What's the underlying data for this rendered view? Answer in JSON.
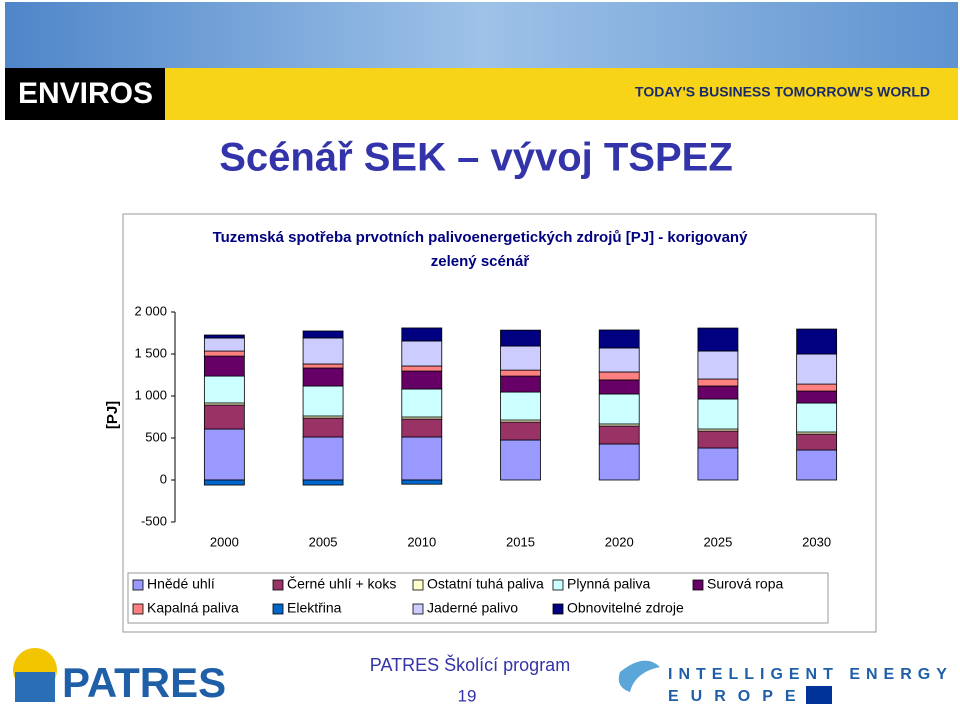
{
  "header": {
    "brand": "ENVIROS",
    "slogan": "TODAY'S BUSINESS TOMORROW'S WORLD"
  },
  "slide_title": "Scénář SEK – vývoj TSPEZ",
  "chart_data": {
    "type": "stacked_bar",
    "title": "Tuzemská spotřeba prvotních palivoenergetických zdrojů [PJ] - korigovaný",
    "subtitle": "zelený scénář",
    "y_label": "[PJ]",
    "categories": [
      "2000",
      "2005",
      "2010",
      "2015",
      "2020",
      "2025",
      "2030"
    ],
    "ylim": [
      -500,
      2000
    ],
    "yticks": [
      {
        "value": 2000,
        "label": "2 000"
      },
      {
        "value": 1500,
        "label": "1 500"
      },
      {
        "value": 1000,
        "label": "1 000"
      },
      500,
      0,
      -500
    ],
    "series": [
      {
        "name": "Hnědé uhlí",
        "color": "#9999ff",
        "values": [
          607,
          512,
          512,
          476,
          429,
          381,
          357
        ]
      },
      {
        "name": "Černé uhlí + koks",
        "color": "#993366",
        "values": [
          286,
          226,
          214,
          214,
          214,
          202,
          190
        ]
      },
      {
        "name": "Ostatní tuhá paliva",
        "color": "#ffffcc",
        "values": [
          24,
          24,
          24,
          24,
          24,
          24,
          24
        ]
      },
      {
        "name": "Plynná paliva",
        "color": "#ccffff",
        "values": [
          320,
          357,
          333,
          333,
          357,
          357,
          345
        ]
      },
      {
        "name": "Surová ropa",
        "color": "#660066",
        "values": [
          238,
          214,
          214,
          190,
          167,
          155,
          143
        ]
      },
      {
        "name": "Kapalná paliva",
        "color": "#ff8080",
        "values": [
          60,
          48,
          60,
          71,
          95,
          83,
          83
        ]
      },
      {
        "name": "Elektřina",
        "color": "#0066cc",
        "values": [
          -60,
          -60,
          -50,
          0,
          0,
          0,
          0
        ]
      },
      {
        "name": "Jaderné palivo",
        "color": "#ccccff",
        "values": [
          155,
          310,
          298,
          286,
          286,
          333,
          357
        ]
      },
      {
        "name": "Obnovitelné zdroje",
        "color": "#000080",
        "values": [
          36,
          83,
          155,
          190,
          214,
          274,
          298
        ]
      }
    ]
  },
  "footer": {
    "patres": "PATRES",
    "program": "PATRES Školící program",
    "page": "19",
    "iee_line1": "INTELLIGENT ENERGY",
    "iee_line2": "EUROPE"
  }
}
